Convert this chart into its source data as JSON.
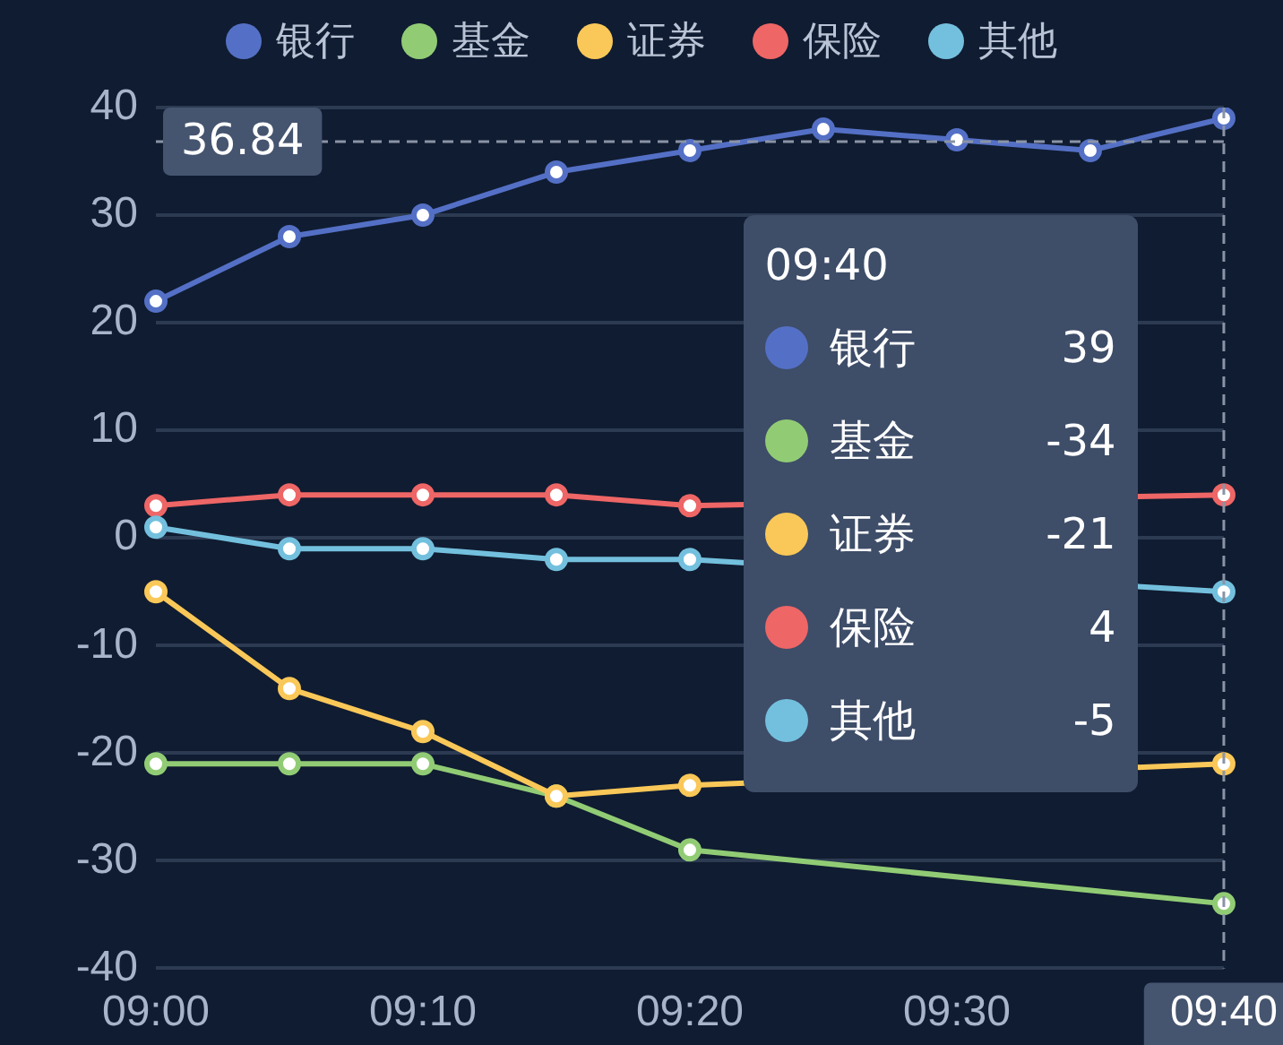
{
  "chart_data": {
    "type": "line",
    "categories": [
      "09:00",
      null,
      "09:10",
      null,
      "09:20",
      null,
      "09:30",
      null,
      "09:40"
    ],
    "series": [
      {
        "name": "银行",
        "color": "#5470c6",
        "values": [
          22,
          28,
          30,
          34,
          36,
          38,
          37,
          36,
          39
        ]
      },
      {
        "name": "基金",
        "color": "#91cc75",
        "values": [
          -21,
          -21,
          -21,
          -24,
          -29,
          null,
          null,
          null,
          -34
        ]
      },
      {
        "name": "证券",
        "color": "#fac858",
        "values": [
          -5,
          -14,
          -18,
          -24,
          -23,
          null,
          null,
          null,
          -21
        ]
      },
      {
        "name": "保险",
        "color": "#ee6666",
        "values": [
          3,
          4,
          4,
          4,
          3,
          null,
          null,
          null,
          4
        ]
      },
      {
        "name": "其他",
        "color": "#73c0de",
        "values": [
          1,
          -1,
          -1,
          -2,
          -2,
          null,
          null,
          null,
          -5
        ]
      }
    ],
    "ylim": [
      -40,
      40
    ],
    "yticks": [
      -40,
      -30,
      -20,
      -10,
      0,
      10,
      20,
      30,
      40
    ],
    "grid": "y",
    "legend": "top",
    "marker": "circle",
    "line_style": "solid",
    "annotations": [
      "09:40",
      "39",
      "-34",
      "-21",
      "4",
      "-5"
    ],
    "ref_lines": [
      {
        "axis": "y",
        "value": 36.84,
        "label": "36.84",
        "line_style": "dashed",
        "color": "#8a94a6"
      },
      {
        "axis": "x",
        "value": "09:40",
        "line_style": "dashed",
        "color": "#8a94a6"
      }
    ]
  }
}
